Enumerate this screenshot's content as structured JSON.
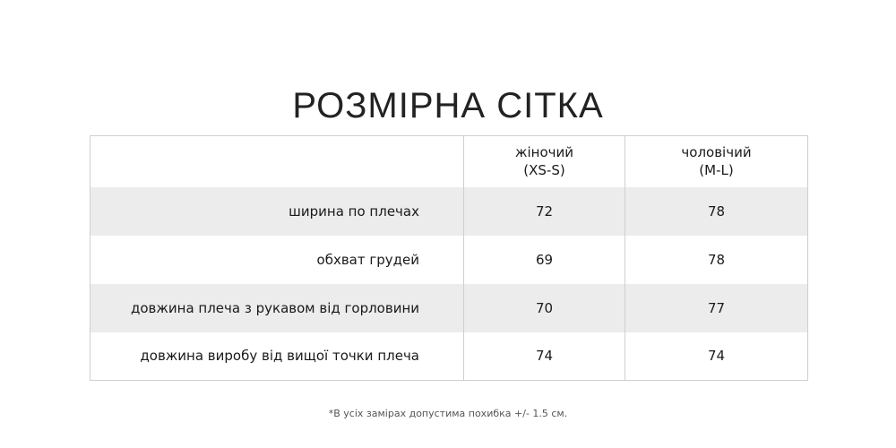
{
  "title": "РОЗМІРНА СІТКА",
  "table": {
    "corner_label": "",
    "columns": [
      {
        "line1": "жіночий",
        "line2": "(XS-S)"
      },
      {
        "line1": "чоловічий",
        "line2": "(M-L)"
      }
    ],
    "rows": [
      {
        "label": "ширина по плечах",
        "women": "72",
        "men": "78"
      },
      {
        "label": "обхват грудей",
        "women": "69",
        "men": "78"
      },
      {
        "label": "довжина плеча з рукавом від горловини",
        "women": "70",
        "men": "77"
      },
      {
        "label": "довжина виробу від вищої точки плеча",
        "women": "74",
        "men": "74"
      }
    ]
  },
  "footnote": "*В усіх замірах допустима похибка +/- 1.5 см.",
  "colors": {
    "stripe": "#ececec",
    "border": "#cfcfcf",
    "text": "#1a1a1a"
  }
}
